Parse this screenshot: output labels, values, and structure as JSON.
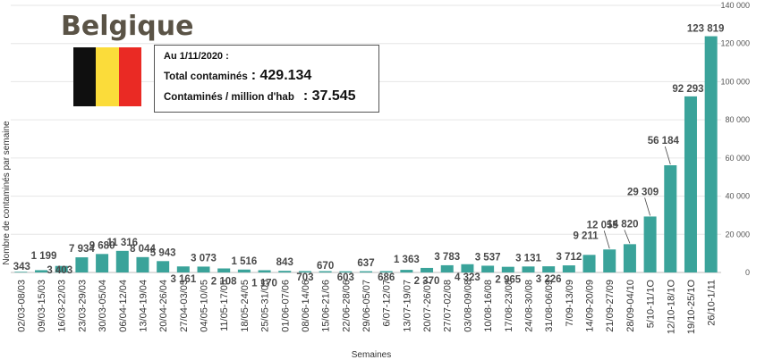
{
  "header": {
    "country": "Belgique",
    "date_label": "Au 1/11/2020 :",
    "total_label": "Total contaminés",
    "total_value": ": 429.134",
    "per_million_label": "Contaminés / million d'hab",
    "per_million_value": ":  37.545"
  },
  "flag_colors": [
    "#0f0f0f",
    "#fbdc3a",
    "#ea2a24"
  ],
  "chart_data": {
    "type": "bar",
    "bar_color": "#3aa39a",
    "grid": true,
    "ylim": [
      0,
      140000
    ],
    "yticks": [
      "0",
      "20 000",
      "40 000",
      "60 000",
      "80 000",
      "100 000",
      "120 000",
      "140 000"
    ],
    "xlabel": "Semaines",
    "ylabel": "Nombre de contaminés par semaine",
    "categories": [
      "02/03-08/03",
      "09/03-15/03",
      "16/03-22/03",
      "23/03-29/03",
      "30/03-05/04",
      "06/04-12/04",
      "13/04-19/04",
      "20/04-26/04",
      "27/04-03/05",
      "04/05-10/05",
      "11/05-17/05",
      "18/05-24/05",
      "25/05-31/05",
      "01/06-07/06",
      "08/06-14/06",
      "15/06-21/06",
      "22/06-28/06",
      "29/06-05/07",
      "6/07-12/07",
      "13/07-19/07",
      "20/07-26/07",
      "27/07-02/08",
      "03/08-09/08",
      "10/08-16/08",
      "17/08-23/08",
      "24/08-30/08",
      "31/08-06/09",
      "7/09-13/09",
      "14/09-20/09",
      "21/09-27/09",
      "28/09-04/10",
      "5/10-11/1O",
      "12/10-18/1O",
      "19/10-25/1O",
      "26/10-1/11"
    ],
    "values": [
      343,
      1199,
      3403,
      7934,
      9680,
      11316,
      8044,
      5943,
      3161,
      3073,
      2108,
      1516,
      1170,
      843,
      703,
      670,
      603,
      637,
      686,
      1363,
      2370,
      3783,
      4323,
      3537,
      2965,
      3131,
      3226,
      3712,
      9211,
      12055,
      14820,
      29309,
      56184,
      92293,
      123819
    ],
    "data_labels": [
      "343",
      "1 199",
      "3 403",
      "7 934",
      "9 680",
      "11 316",
      "8 044",
      "5 943",
      "3 161",
      "3 073",
      "2 108",
      "1 516",
      "1 170",
      "843",
      "703",
      "670",
      "603",
      "637",
      "686",
      "1 363",
      "2 370",
      "3 783",
      "4 323",
      "3 537",
      "2 965",
      "3 131",
      "3 226",
      "3 712",
      "9 211",
      "12 055",
      "14 820",
      "29 309",
      "56 184",
      "92 293",
      "123 819"
    ]
  }
}
